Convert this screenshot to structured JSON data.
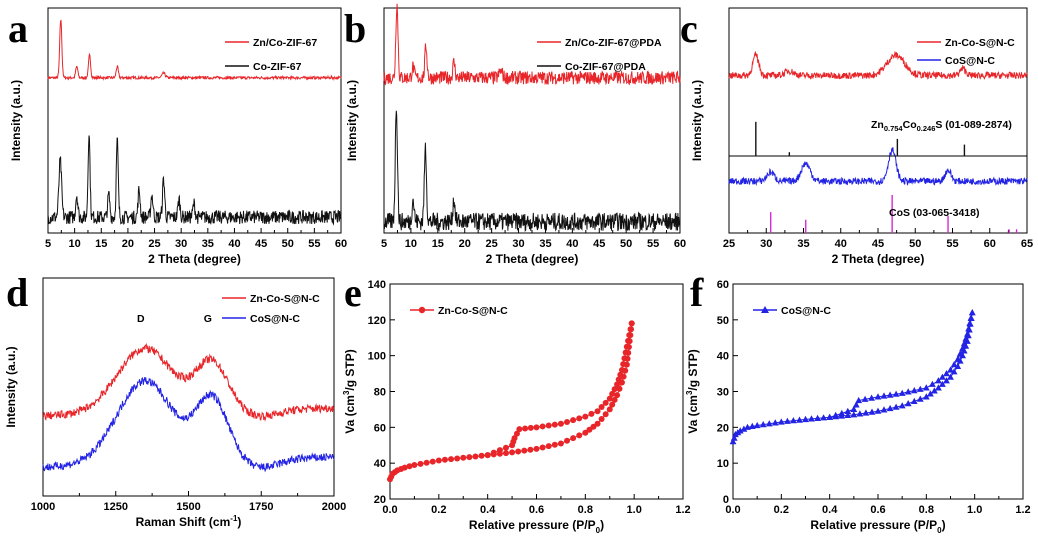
{
  "chart_data": [
    {
      "panel": "a",
      "type": "line",
      "xlabel": "2 Theta (degree)",
      "ylabel": "Intensity (a.u.)",
      "xlim": [
        5,
        60
      ],
      "xticks": [
        "5",
        "10",
        "15",
        "20",
        "25",
        "30",
        "35",
        "40",
        "45",
        "50",
        "55",
        "60"
      ],
      "series": [
        {
          "name": "Zn/Co-ZIF-67",
          "color": "#e8262a",
          "baseline": 0.69,
          "noise": 0.006,
          "peaks": [
            [
              7.4,
              0.26,
              0.2
            ],
            [
              10.4,
              0.05,
              0.2
            ],
            [
              12.8,
              0.1,
              0.2
            ],
            [
              18.0,
              0.05,
              0.2
            ],
            [
              26.7,
              0.02,
              0.3
            ]
          ]
        },
        {
          "name": "Co-ZIF-67",
          "color": "#111111",
          "baseline": 0.07,
          "noise": 0.03,
          "peaks": [
            [
              7.3,
              0.25,
              0.25
            ],
            [
              10.4,
              0.1,
              0.2
            ],
            [
              12.7,
              0.38,
              0.18
            ],
            [
              16.4,
              0.1,
              0.2
            ],
            [
              18.0,
              0.34,
              0.18
            ],
            [
              22.1,
              0.12,
              0.2
            ],
            [
              24.5,
              0.1,
              0.2
            ],
            [
              26.7,
              0.17,
              0.2
            ],
            [
              29.6,
              0.08,
              0.2
            ],
            [
              32.4,
              0.06,
              0.2
            ]
          ]
        }
      ]
    },
    {
      "panel": "b",
      "type": "line",
      "xlabel": "2 Theta (degree)",
      "ylabel": "Intensity (a.u.)",
      "xlim": [
        5,
        60
      ],
      "xticks": [
        "5",
        "10",
        "15",
        "20",
        "25",
        "30",
        "35",
        "40",
        "45",
        "50",
        "55",
        "60"
      ],
      "series": [
        {
          "name": "Zn/Co-ZIF-67@PDA",
          "color": "#e8262a",
          "baseline": 0.69,
          "noise": 0.03,
          "peaks": [
            [
              7.4,
              0.33,
              0.2
            ],
            [
              10.4,
              0.05,
              0.2
            ],
            [
              12.8,
              0.14,
              0.2
            ],
            [
              18.0,
              0.07,
              0.2
            ],
            [
              26.7,
              0.03,
              0.3
            ]
          ]
        },
        {
          "name": "Co-ZIF-67@PDA",
          "color": "#111111",
          "baseline": 0.05,
          "noise": 0.04,
          "peaks": [
            [
              7.3,
              0.52,
              0.2
            ],
            [
              10.4,
              0.1,
              0.2
            ],
            [
              12.7,
              0.33,
              0.2
            ],
            [
              18.0,
              0.1,
              0.2
            ]
          ]
        }
      ]
    },
    {
      "panel": "c",
      "type": "line",
      "xlabel": "2 Theta (degree)",
      "ylabel": "Intensity (a.u.)",
      "xlim": [
        25,
        65
      ],
      "xticks": [
        "25",
        "30",
        "35",
        "40",
        "45",
        "50",
        "55",
        "60",
        "65"
      ],
      "series": [
        {
          "name": "Zn-Co-S@N-C",
          "color": "#e8262a",
          "baseline": 0.7,
          "noise": 0.015,
          "peaks": [
            [
              28.6,
              0.09,
              0.4
            ],
            [
              33.1,
              0.02,
              0.6
            ],
            [
              47.4,
              0.09,
              1.2
            ],
            [
              56.4,
              0.03,
              0.4
            ]
          ]
        },
        {
          "name": "CoS@N-C",
          "color": "#2323e6",
          "baseline": 0.23,
          "noise": 0.015,
          "peaks": [
            [
              30.6,
              0.04,
              0.5
            ],
            [
              35.3,
              0.08,
              0.6
            ],
            [
              46.9,
              0.14,
              0.5
            ],
            [
              54.4,
              0.05,
              0.4
            ]
          ]
        }
      ],
      "references": [
        {
          "label_main": "Zn",
          "label_sub1": "0.754",
          "label_mid": "Co",
          "label_sub2": "0.246",
          "label_end": "S (01-089-2874)",
          "color": "#111111",
          "sticks": [
            [
              28.6,
              0.9
            ],
            [
              33.1,
              0.1
            ],
            [
              47.6,
              0.45
            ],
            [
              56.6,
              0.3
            ]
          ]
        },
        {
          "label": "CoS (03-065-3418)",
          "color": "#d62ad6",
          "sticks": [
            [
              30.6,
              0.55
            ],
            [
              35.3,
              0.35
            ],
            [
              46.9,
              1.0
            ],
            [
              54.4,
              0.45
            ],
            [
              62.6,
              0.1
            ],
            [
              63.6,
              0.1
            ]
          ]
        }
      ]
    },
    {
      "panel": "d",
      "type": "line",
      "xlabel_main": "Raman Shift (cm",
      "xlabel_sup": "-1",
      "xlabel_end": ")",
      "ylabel": "Intensity (a.u.)",
      "xlim": [
        1000,
        2000
      ],
      "xticks": [
        "1000",
        "1250",
        "1500",
        "1750",
        "2000"
      ],
      "annotations": [
        {
          "text": "D",
          "x": 1350
        },
        {
          "text": "G",
          "x": 1580
        }
      ],
      "series": [
        {
          "name": "Zn-Co-S@N-C",
          "color": "#e8262a",
          "offset": 0.25,
          "noise": 0.02
        },
        {
          "name": "CoS@N-C",
          "color": "#2323e6",
          "offset": 0.0,
          "noise": 0.02
        }
      ]
    },
    {
      "panel": "e",
      "type": "scatter",
      "xlabel_main": "Relative pressure (P/P",
      "xlabel_sub": "0",
      "xlabel_end": ")",
      "ylabel_main": "Va (cm",
      "ylabel_sup": "3",
      "ylabel_end": "/g STP)",
      "xlim": [
        0,
        1.2
      ],
      "ylim": [
        20,
        140
      ],
      "xticks": [
        "0.0",
        "0.2",
        "0.4",
        "0.6",
        "0.8",
        "1.0",
        "1.2"
      ],
      "yticks": [
        "20",
        "40",
        "60",
        "80",
        "100",
        "120",
        "140"
      ],
      "series": [
        {
          "name": "Zn-Co-S@N-C",
          "color": "#e8262a",
          "marker": "circle",
          "adsorption": [
            [
              0.0,
              31
            ],
            [
              0.01,
              34
            ],
            [
              0.03,
              36
            ],
            [
              0.06,
              37.5
            ],
            [
              0.1,
              39
            ],
            [
              0.2,
              41.5
            ],
            [
              0.3,
              43
            ],
            [
              0.4,
              44.5
            ],
            [
              0.5,
              46
            ],
            [
              0.6,
              48
            ],
            [
              0.7,
              51
            ],
            [
              0.8,
              57
            ],
            [
              0.85,
              62
            ],
            [
              0.9,
              70
            ],
            [
              0.93,
              78
            ],
            [
              0.95,
              85
            ],
            [
              0.97,
              95
            ],
            [
              0.99,
              118
            ]
          ],
          "desorption": [
            [
              0.99,
              118
            ],
            [
              0.97,
              105
            ],
            [
              0.95,
              92
            ],
            [
              0.93,
              84
            ],
            [
              0.9,
              76
            ],
            [
              0.85,
              69
            ],
            [
              0.8,
              66
            ],
            [
              0.7,
              62
            ],
            [
              0.6,
              60
            ],
            [
              0.53,
              59
            ],
            [
              0.51,
              54
            ],
            [
              0.5,
              50
            ],
            [
              0.4,
              44.5
            ]
          ]
        }
      ]
    },
    {
      "panel": "f",
      "type": "scatter",
      "xlabel_main": "Relative pressure (P/P",
      "xlabel_sub": "0",
      "xlabel_end": ")",
      "ylabel_main": "Va (cm",
      "ylabel_sup": "3",
      "ylabel_end": "/g STP)",
      "xlim": [
        0,
        1.2
      ],
      "ylim": [
        0,
        60
      ],
      "xticks": [
        "0.0",
        "0.2",
        "0.4",
        "0.6",
        "0.8",
        "1.0",
        "1.2"
      ],
      "yticks": [
        "0",
        "10",
        "20",
        "30",
        "40",
        "50",
        "60"
      ],
      "series": [
        {
          "name": "CoS@N-C",
          "color": "#2323e6",
          "marker": "triangle",
          "adsorption": [
            [
              0.0,
              16
            ],
            [
              0.01,
              18
            ],
            [
              0.03,
              19
            ],
            [
              0.06,
              20
            ],
            [
              0.1,
              20.5
            ],
            [
              0.2,
              21.5
            ],
            [
              0.3,
              22.2
            ],
            [
              0.4,
              22.8
            ],
            [
              0.5,
              23.5
            ],
            [
              0.6,
              24.5
            ],
            [
              0.7,
              26
            ],
            [
              0.8,
              28.5
            ],
            [
              0.85,
              31
            ],
            [
              0.9,
              34
            ],
            [
              0.93,
              37
            ],
            [
              0.95,
              40
            ],
            [
              0.97,
              44
            ],
            [
              0.99,
              52
            ]
          ],
          "desorption": [
            [
              0.99,
              52
            ],
            [
              0.97,
              46
            ],
            [
              0.95,
              42
            ],
            [
              0.93,
              39
            ],
            [
              0.9,
              36
            ],
            [
              0.85,
              33
            ],
            [
              0.8,
              31
            ],
            [
              0.7,
              29.5
            ],
            [
              0.6,
              28.5
            ],
            [
              0.52,
              27.5
            ],
            [
              0.5,
              25
            ],
            [
              0.4,
              22.8
            ]
          ]
        }
      ]
    }
  ]
}
